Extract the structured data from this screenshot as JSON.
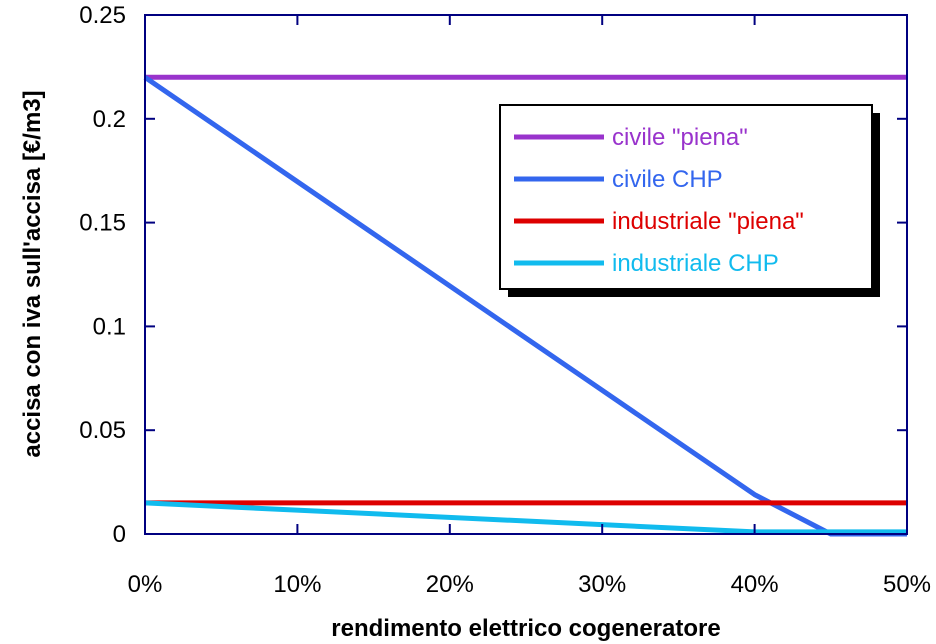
{
  "chart_data": {
    "type": "line",
    "xlabel": "rendimento elettrico cogeneratore",
    "ylabel": "accisa con iva sull'accisa [€/m3]",
    "xlim": [
      0,
      0.5
    ],
    "ylim": [
      0,
      0.25
    ],
    "x_ticks": [
      0,
      0.1,
      0.2,
      0.3,
      0.4,
      0.5
    ],
    "x_tick_labels": [
      "0%",
      "10%",
      "20%",
      "30%",
      "40%",
      "50%"
    ],
    "y_ticks": [
      0,
      0.05,
      0.1,
      0.15,
      0.2,
      0.25
    ],
    "y_tick_labels": [
      "0",
      "0.05",
      "0.1",
      "0.15",
      "0.2",
      "0.25"
    ],
    "grid": false,
    "legend_position": "top-right",
    "series": [
      {
        "name": "civile \"piena\"",
        "color": "#9933CC",
        "x": [
          0,
          0.5
        ],
        "y": [
          0.22,
          0.22
        ]
      },
      {
        "name": "civile CHP",
        "color": "#3366EE",
        "x": [
          0,
          0.4,
          0.45,
          0.5
        ],
        "y": [
          0.22,
          0.019,
          0,
          0
        ]
      },
      {
        "name": "industriale \"piena\"",
        "color": "#DD0000",
        "x": [
          0,
          0.5
        ],
        "y": [
          0.015,
          0.015
        ]
      },
      {
        "name": "industriale CHP",
        "color": "#11BBEE",
        "x": [
          0,
          0.4,
          0.5
        ],
        "y": [
          0.015,
          0.001,
          0.001
        ]
      }
    ]
  }
}
